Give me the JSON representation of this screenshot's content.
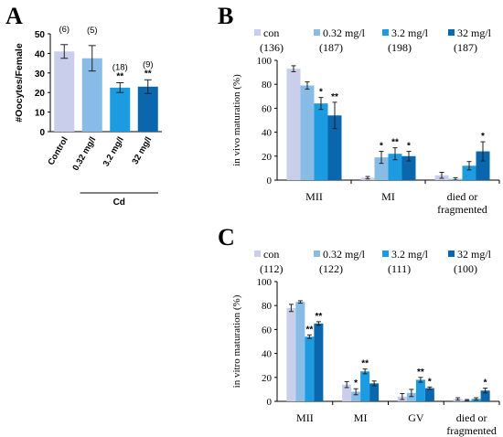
{
  "colors": {
    "series": [
      "#c9cfea",
      "#88bce6",
      "#1d9be0",
      "#0a67ad"
    ]
  },
  "chart_data": [
    {
      "panel": "A",
      "type": "bar",
      "title": "",
      "ylabel": "#Oocytes/Female",
      "xlabel": "",
      "ylim": [
        0,
        50
      ],
      "yticks": [
        0,
        10,
        20,
        30,
        40,
        50
      ],
      "categories": [
        "Control",
        "0.32 mg/l",
        "3.2 mg/l",
        "32 mg/l"
      ],
      "values": [
        41,
        37.5,
        22.5,
        23
      ],
      "errors": [
        3.5,
        6.5,
        2.5,
        3.5
      ],
      "n_labels": [
        "(6)",
        "(5)",
        "(18)",
        "(9)"
      ],
      "significance": [
        "",
        "",
        "**",
        "**"
      ],
      "group_label": "Cd",
      "grid": false
    },
    {
      "panel": "B",
      "type": "bar",
      "title": "",
      "ylabel": "in vivo maturation (%)",
      "xlabel": "",
      "ylim": [
        0,
        100
      ],
      "yticks": [
        0,
        20,
        40,
        60,
        80,
        100
      ],
      "categories": [
        "MII",
        "MI",
        "died or\nfragmented"
      ],
      "legend_position": "top",
      "series": [
        {
          "name": "con",
          "n": "(136)",
          "values": [
            93,
            2,
            4
          ],
          "errors": [
            2.5,
            1,
            2.5
          ],
          "significance": [
            "",
            "",
            ""
          ]
        },
        {
          "name": "0.32 mg/l",
          "n": "(187)",
          "values": [
            79,
            19,
            1
          ],
          "errors": [
            3,
            5,
            1
          ],
          "significance": [
            "",
            "*",
            ""
          ]
        },
        {
          "name": "3.2 mg/l",
          "n": "(198)",
          "values": [
            64,
            22,
            12
          ],
          "errors": [
            5,
            5,
            3.5
          ],
          "significance": [
            "*",
            "**",
            ""
          ]
        },
        {
          "name": "32 mg/l",
          "n": "(187)",
          "values": [
            54,
            20,
            24
          ],
          "errors": [
            11,
            4,
            8
          ],
          "significance": [
            "**",
            "*",
            "*"
          ]
        }
      ],
      "grid": false
    },
    {
      "panel": "C",
      "type": "bar",
      "title": "",
      "ylabel": "in vitro maturation (%)",
      "xlabel": "",
      "ylim": [
        0,
        100
      ],
      "yticks": [
        0,
        20,
        40,
        60,
        80,
        100
      ],
      "categories": [
        "MII",
        "MI",
        "GV",
        "died or\nfragmented"
      ],
      "legend_position": "top",
      "series": [
        {
          "name": "con",
          "n": "(112)",
          "values": [
            78,
            14,
            4,
            2
          ],
          "errors": [
            3,
            2.5,
            2.5,
            1
          ],
          "significance": [
            "",
            "",
            "",
            ""
          ]
        },
        {
          "name": "0.32 mg/l",
          "n": "(122)",
          "values": [
            83,
            8,
            7,
            1
          ],
          "errors": [
            1,
            2.5,
            3,
            0.5
          ],
          "significance": [
            "",
            "*",
            "",
            ""
          ]
        },
        {
          "name": "3.2 mg/l",
          "n": "(111)",
          "values": [
            54,
            25,
            18,
            2
          ],
          "errors": [
            1.5,
            2,
            2,
            1
          ],
          "significance": [
            "**",
            "**",
            "**",
            ""
          ]
        },
        {
          "name": "32 mg/l",
          "n": "(100)",
          "values": [
            65,
            15,
            11,
            9
          ],
          "errors": [
            1.5,
            2,
            1,
            2
          ],
          "significance": [
            "**",
            "",
            "*",
            "*"
          ]
        }
      ],
      "grid": false
    }
  ]
}
